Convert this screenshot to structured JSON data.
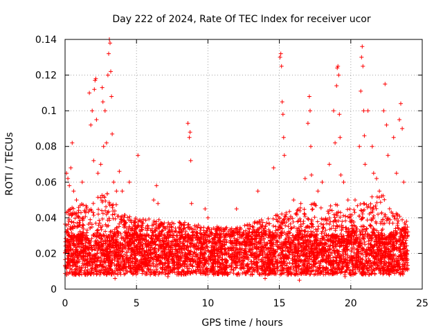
{
  "chart_data": {
    "type": "scatter",
    "title": "Day 222 of 2024, Rate Of TEC Index for receiver ucor",
    "xlabel": "GPS time / hours",
    "ylabel": "ROTI / TECUs",
    "xlim": [
      0,
      25
    ],
    "ylim": [
      0,
      0.14
    ],
    "x_ticks": [
      0,
      5,
      10,
      15,
      20,
      25
    ],
    "x_tick_labels": [
      "0",
      "5",
      "10",
      "15",
      "20",
      "25"
    ],
    "y_ticks": [
      0,
      0.02,
      0.04,
      0.06,
      0.08,
      0.1,
      0.12,
      0.14
    ],
    "y_tick_labels": [
      "0",
      "0.02",
      "0.04",
      "0.06",
      "0.08",
      "0.1",
      "0.12",
      "0.14"
    ],
    "grid": true,
    "marker": "plus",
    "color": "#ff0000",
    "series": [
      {
        "points": [
          [
            0.1,
            0.065
          ],
          [
            0.2,
            0.062
          ],
          [
            0.3,
            0.058
          ],
          [
            0.4,
            0.068
          ],
          [
            0.5,
            0.082
          ],
          [
            0.6,
            0.055
          ],
          [
            0.8,
            0.05
          ],
          [
            1.2,
            0.06
          ],
          [
            1.5,
            0.045
          ],
          [
            1.7,
            0.11
          ],
          [
            1.8,
            0.092
          ],
          [
            1.9,
            0.1
          ],
          [
            2.0,
            0.072
          ],
          [
            2.05,
            0.112
          ],
          [
            2.1,
            0.117
          ],
          [
            2.15,
            0.118
          ],
          [
            2.2,
            0.095
          ],
          [
            2.3,
            0.065
          ],
          [
            2.5,
            0.07
          ],
          [
            2.6,
            0.113
          ],
          [
            2.65,
            0.105
          ],
          [
            2.7,
            0.08
          ],
          [
            2.8,
            0.1
          ],
          [
            2.9,
            0.082
          ],
          [
            3.0,
            0.12
          ],
          [
            3.05,
            0.132
          ],
          [
            3.1,
            0.14
          ],
          [
            3.15,
            0.138
          ],
          [
            3.2,
            0.122
          ],
          [
            3.25,
            0.108
          ],
          [
            3.3,
            0.087
          ],
          [
            3.4,
            0.06
          ],
          [
            3.6,
            0.055
          ],
          [
            3.8,
            0.066
          ],
          [
            4.0,
            0.055
          ],
          [
            4.5,
            0.06
          ],
          [
            5.1,
            0.075
          ],
          [
            6.2,
            0.05
          ],
          [
            6.4,
            0.058
          ],
          [
            6.5,
            0.048
          ],
          [
            8.6,
            0.093
          ],
          [
            8.7,
            0.085
          ],
          [
            8.75,
            0.088
          ],
          [
            8.8,
            0.072
          ],
          [
            8.85,
            0.048
          ],
          [
            9.8,
            0.045
          ],
          [
            10.0,
            0.04
          ],
          [
            12.0,
            0.045
          ],
          [
            13.5,
            0.055
          ],
          [
            14.6,
            0.068
          ],
          [
            15.05,
            0.13
          ],
          [
            15.1,
            0.132
          ],
          [
            15.15,
            0.125
          ],
          [
            15.2,
            0.105
          ],
          [
            15.25,
            0.098
          ],
          [
            15.3,
            0.085
          ],
          [
            15.35,
            0.075
          ],
          [
            16.0,
            0.05
          ],
          [
            16.5,
            0.048
          ],
          [
            16.8,
            0.062
          ],
          [
            17.0,
            0.093
          ],
          [
            17.1,
            0.108
          ],
          [
            17.15,
            0.1
          ],
          [
            17.2,
            0.08
          ],
          [
            17.25,
            0.064
          ],
          [
            17.7,
            0.055
          ],
          [
            18.0,
            0.06
          ],
          [
            18.5,
            0.07
          ],
          [
            18.8,
            0.1
          ],
          [
            18.9,
            0.082
          ],
          [
            19.0,
            0.114
          ],
          [
            19.05,
            0.124
          ],
          [
            19.1,
            0.125
          ],
          [
            19.15,
            0.12
          ],
          [
            19.2,
            0.098
          ],
          [
            19.25,
            0.085
          ],
          [
            19.3,
            0.064
          ],
          [
            19.5,
            0.06
          ],
          [
            19.8,
            0.05
          ],
          [
            20.3,
            0.05
          ],
          [
            20.6,
            0.08
          ],
          [
            20.7,
            0.111
          ],
          [
            20.75,
            0.13
          ],
          [
            20.8,
            0.136
          ],
          [
            20.85,
            0.125
          ],
          [
            20.9,
            0.1
          ],
          [
            20.95,
            0.086
          ],
          [
            21.0,
            0.07
          ],
          [
            21.2,
            0.1
          ],
          [
            21.5,
            0.08
          ],
          [
            21.6,
            0.065
          ],
          [
            21.8,
            0.062
          ],
          [
            22.0,
            0.055
          ],
          [
            22.3,
            0.1
          ],
          [
            22.4,
            0.115
          ],
          [
            22.5,
            0.092
          ],
          [
            22.6,
            0.075
          ],
          [
            23.0,
            0.085
          ],
          [
            23.2,
            0.065
          ],
          [
            23.4,
            0.095
          ],
          [
            23.5,
            0.104
          ],
          [
            23.6,
            0.09
          ],
          [
            23.7,
            0.06
          ],
          [
            23.9,
            0.038
          ],
          [
            1.0,
            0.008
          ],
          [
            3.5,
            0.006
          ],
          [
            7.2,
            0.007
          ],
          [
            11.0,
            0.009
          ],
          [
            14.0,
            0.006
          ],
          [
            16.4,
            0.005
          ],
          [
            19.6,
            0.007
          ],
          [
            22.7,
            0.008
          ]
        ],
        "dense_band": {
          "x_range": [
            0,
            24
          ],
          "y_low": 0.008,
          "y_high": 0.03,
          "upper_envelope": [
            [
              0,
              0.045
            ],
            [
              2,
              0.05
            ],
            [
              3,
              0.055
            ],
            [
              4,
              0.045
            ],
            [
              5,
              0.04
            ],
            [
              8,
              0.038
            ],
            [
              10,
              0.035
            ],
            [
              12,
              0.035
            ],
            [
              14,
              0.04
            ],
            [
              16,
              0.045
            ],
            [
              18,
              0.05
            ],
            [
              20,
              0.045
            ],
            [
              21,
              0.05
            ],
            [
              22,
              0.055
            ],
            [
              23,
              0.045
            ],
            [
              24,
              0.035
            ]
          ]
        }
      }
    ]
  }
}
